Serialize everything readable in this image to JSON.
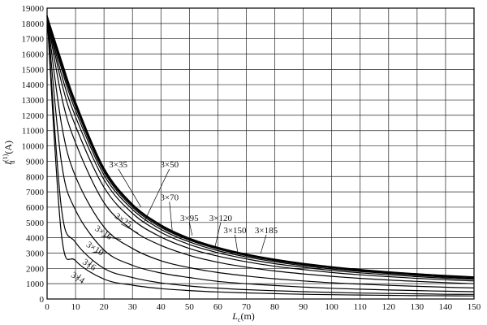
{
  "chart_data": {
    "type": "line",
    "title": "",
    "xlabel": "Lc(m)",
    "xlabel_main": "L",
    "xlabel_sub": "c",
    "xlabel_rest": "(m)",
    "ylabel": "I_d^(1)(A)",
    "ylabel_main": "I",
    "ylabel_sup": "(1)",
    "ylabel_sub": "d",
    "ylabel_rest": "(A)",
    "xlim": [
      0,
      150
    ],
    "ylim": [
      0,
      19000
    ],
    "x_ticks": [
      0,
      10,
      20,
      30,
      40,
      50,
      60,
      70,
      80,
      90,
      100,
      110,
      120,
      130,
      140,
      150
    ],
    "y_ticks": [
      0,
      1000,
      2000,
      3000,
      4000,
      5000,
      6000,
      7000,
      8000,
      9000,
      10000,
      11000,
      12000,
      13000,
      14000,
      15000,
      16000,
      17000,
      18000,
      19000
    ],
    "grid": true,
    "x": [
      0,
      5,
      10,
      20,
      30,
      40,
      50,
      60,
      70,
      80,
      90,
      100,
      110,
      120,
      130,
      140,
      150
    ],
    "series": [
      {
        "name": "3×4",
        "values": [
          18500,
          4300,
          2500,
          1300,
          900,
          680,
          550,
          460,
          400,
          350,
          310,
          280,
          260,
          240,
          220,
          210,
          200
        ]
      },
      {
        "name": "3×6",
        "values": [
          18500,
          6000,
          3700,
          2000,
          1400,
          1050,
          850,
          710,
          610,
          540,
          480,
          430,
          390,
          360,
          340,
          310,
          300
        ]
      },
      {
        "name": "3×10",
        "values": [
          18500,
          9000,
          5800,
          3200,
          2200,
          1700,
          1400,
          1150,
          1000,
          880,
          780,
          700,
          640,
          590,
          550,
          510,
          480
        ]
      },
      {
        "name": "3×16",
        "values": [
          18500,
          11500,
          8000,
          4700,
          3300,
          2500,
          2050,
          1730,
          1500,
          1320,
          1180,
          1060,
          970,
          890,
          830,
          770,
          720
        ]
      },
      {
        "name": "3×25",
        "values": [
          18500,
          13300,
          10200,
          6300,
          4500,
          3500,
          2850,
          2400,
          2080,
          1830,
          1640,
          1480,
          1350,
          1240,
          1150,
          1070,
          1000
        ]
      },
      {
        "name": "3×35",
        "values": [
          18500,
          14200,
          11300,
          7300,
          5200,
          4050,
          3300,
          2800,
          2430,
          2140,
          1920,
          1730,
          1580,
          1460,
          1350,
          1260,
          1180
        ]
      },
      {
        "name": "3×50",
        "values": [
          18500,
          14700,
          11900,
          7800,
          5600,
          4350,
          3560,
          3020,
          2620,
          2310,
          2070,
          1870,
          1710,
          1580,
          1460,
          1360,
          1280
        ]
      },
      {
        "name": "3×70",
        "values": [
          18500,
          15100,
          12300,
          8100,
          5850,
          4550,
          3730,
          3160,
          2750,
          2430,
          2170,
          1960,
          1800,
          1660,
          1540,
          1430,
          1340
        ]
      },
      {
        "name": "3×95",
        "values": [
          18500,
          15300,
          12550,
          8300,
          6000,
          4680,
          3840,
          3260,
          2830,
          2500,
          2240,
          2030,
          1850,
          1710,
          1590,
          1480,
          1390
        ]
      },
      {
        "name": "3×120",
        "values": [
          18500,
          15450,
          12700,
          8420,
          6100,
          4760,
          3900,
          3310,
          2880,
          2540,
          2280,
          2060,
          1890,
          1740,
          1620,
          1510,
          1410
        ]
      },
      {
        "name": "3×150",
        "values": [
          18500,
          15550,
          12800,
          8500,
          6160,
          4810,
          3950,
          3350,
          2910,
          2570,
          2310,
          2090,
          1910,
          1760,
          1640,
          1530,
          1430
        ]
      },
      {
        "name": "3×185",
        "values": [
          18500,
          15620,
          12880,
          8560,
          6200,
          4850,
          3980,
          3380,
          2940,
          2600,
          2330,
          2110,
          1930,
          1780,
          1650,
          1540,
          1450
        ]
      }
    ],
    "labels": [
      {
        "series": "3×35",
        "text": "3×35",
        "at_x": 33,
        "at_y": 6000,
        "lx": 25,
        "ly": 8500
      },
      {
        "series": "3×50",
        "text": "3×50",
        "at_x": 34,
        "at_y": 5000,
        "lx": 43,
        "ly": 8500
      },
      {
        "series": "3×70",
        "text": "3×70",
        "at_x": 44,
        "at_y": 4400,
        "lx": 43,
        "ly": 6350
      },
      {
        "series": "3×95",
        "text": "3×95",
        "at_x": 51,
        "at_y": 4150,
        "lx": 50,
        "ly": 5000
      },
      {
        "series": "3×120",
        "text": "3×120",
        "at_x": 59,
        "at_y": 3400,
        "lx": 61,
        "ly": 5000
      },
      {
        "series": "3×150",
        "text": "3×150",
        "at_x": 67,
        "at_y": 3000,
        "lx": 66,
        "ly": 4200
      },
      {
        "series": "3×185",
        "text": "3×185",
        "at_x": 75,
        "at_y": 2950,
        "lx": 77,
        "ly": 4200
      },
      {
        "series": "3×25",
        "text": "3×25",
        "at_x": 32,
        "at_y": 4300,
        "lx": 26,
        "ly": 4900,
        "rotate": 33
      },
      {
        "series": "3×16",
        "text": "3×16",
        "at_x": 26,
        "at_y": 3900,
        "lx": 19,
        "ly": 4100,
        "rotate": 33
      },
      {
        "series": "3×10",
        "text": "3×10",
        "at_x": 21,
        "at_y": 3000,
        "lx": 16,
        "ly": 3050,
        "rotate": 33
      },
      {
        "series": "3×6",
        "text": "3×6",
        "at_x": 16,
        "at_y": 2500,
        "lx": 14,
        "ly": 2000,
        "rotate": 33
      },
      {
        "series": "3×4",
        "text": "3×4",
        "at_x": 12,
        "at_y": 1600,
        "lx": 10,
        "ly": 1150,
        "rotate": 33
      }
    ]
  }
}
